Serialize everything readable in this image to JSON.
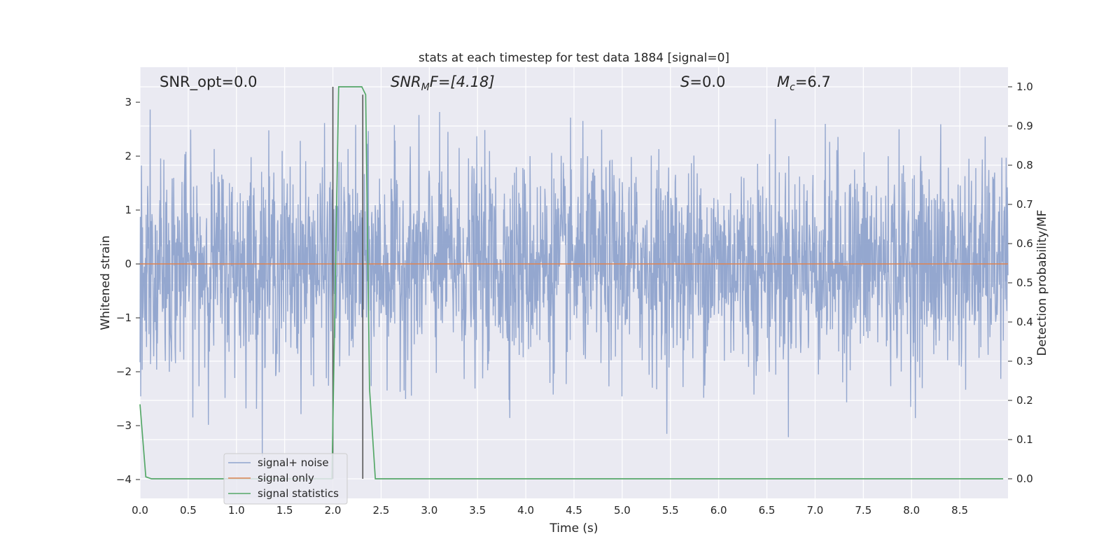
{
  "chart_data": {
    "type": "line",
    "title": "stats at each timestep for test data 1884 [signal=0]",
    "xlabel": "Time (s)",
    "ylabel": "Whitened strain",
    "y2label": "Detection probability/MF",
    "xlim": [
      0.0,
      9.0
    ],
    "ylim": [
      -4.35,
      3.65
    ],
    "y2lim": [
      -0.05,
      1.05
    ],
    "xticks": [
      "0.0",
      "0.5",
      "1.0",
      "1.5",
      "2.0",
      "2.5",
      "3.0",
      "3.5",
      "4.0",
      "4.5",
      "5.0",
      "5.5",
      "6.0",
      "6.5",
      "7.0",
      "7.5",
      "8.0",
      "8.5"
    ],
    "yticks": [
      "3",
      "2",
      "1",
      "0",
      "−1",
      "−2",
      "−3",
      "−4"
    ],
    "y2ticks": [
      "1.0",
      "0.9",
      "0.8",
      "0.7",
      "0.6",
      "0.5",
      "0.4",
      "0.3",
      "0.2",
      "0.1",
      "0.0"
    ],
    "grid": true,
    "legend_placement": "lower-left",
    "annotations": {
      "snr_opt": "SNR_opt=0.0",
      "snr_mf_main": "SNR",
      "snr_mf_sub": "M",
      "snr_mf_rest": "F=[4.18]",
      "s_main": "S",
      "s_rest": "=0.0",
      "mc_main": "M",
      "mc_sub": "c",
      "mc_rest": "=6.7"
    },
    "series": [
      {
        "name": "signal+ noise",
        "color": "#8fa3cc",
        "description_sampled": true,
        "envelope": {
          "typical_max": 1.9,
          "typical_min": -1.9,
          "extreme_max": 3.2,
          "extreme_min": -4.0
        }
      },
      {
        "name": "signal only",
        "color": "#dd8452",
        "x": [
          0.0,
          9.0
        ],
        "y": [
          0.0,
          0.0
        ]
      },
      {
        "name": "signal statistics",
        "color": "#55a868",
        "axis": "right",
        "x": [
          0.0,
          0.06,
          0.12,
          1.95,
          1.99,
          2.06,
          2.3,
          2.34,
          2.38,
          2.44,
          8.95
        ],
        "y": [
          0.19,
          0.005,
          0.0,
          0.0,
          0.0,
          1.0,
          1.0,
          0.98,
          0.23,
          0.0,
          0.0
        ]
      }
    ],
    "vlines": [
      {
        "x": 2.0,
        "y2_top": 1.0,
        "color": "#555555"
      },
      {
        "x": 2.31,
        "y2_top": 0.98,
        "color": "#555555"
      }
    ]
  }
}
